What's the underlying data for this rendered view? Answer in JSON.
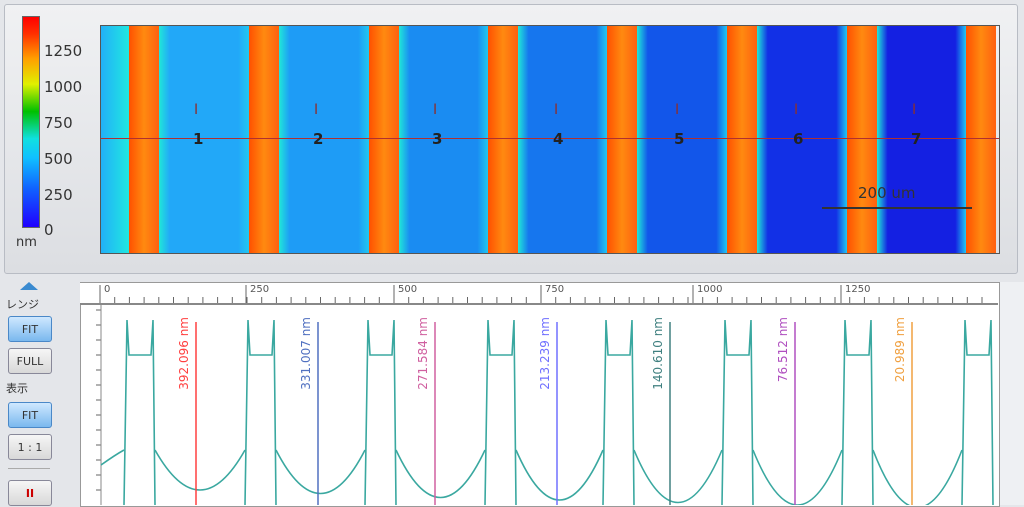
{
  "colorbar": {
    "unit": "nm",
    "ticks": [
      "1250",
      "1000",
      "750",
      "500",
      "250",
      "0"
    ]
  },
  "map": {
    "markers": [
      "1",
      "2",
      "3",
      "4",
      "5",
      "6",
      "7"
    ],
    "scale_label": "200 um"
  },
  "side": {
    "range_label": "レンジ",
    "fit1": "FIT",
    "full": "FULL",
    "display_label": "表示",
    "fit2": "FIT",
    "one_to_one": "1 : 1"
  },
  "ruler": {
    "ticks": [
      "0",
      "250",
      "500",
      "750",
      "1000",
      "1250"
    ]
  },
  "measurements": [
    {
      "label": "392.096 nm",
      "color": "#ff4040"
    },
    {
      "label": "331.007 nm",
      "color": "#5070c0"
    },
    {
      "label": "271.584 nm",
      "color": "#d060a0"
    },
    {
      "label": "213.239 nm",
      "color": "#7070ff"
    },
    {
      "label": "140.610 nm",
      "color": "#408080"
    },
    {
      "label": "76.512 nm",
      "color": "#b050c0"
    },
    {
      "label": "20.989 nm",
      "color": "#f0a040"
    }
  ],
  "colors": {
    "trace": "#3aa8a0",
    "stripe": "#ff8a10",
    "cutline": "#b03030"
  }
}
